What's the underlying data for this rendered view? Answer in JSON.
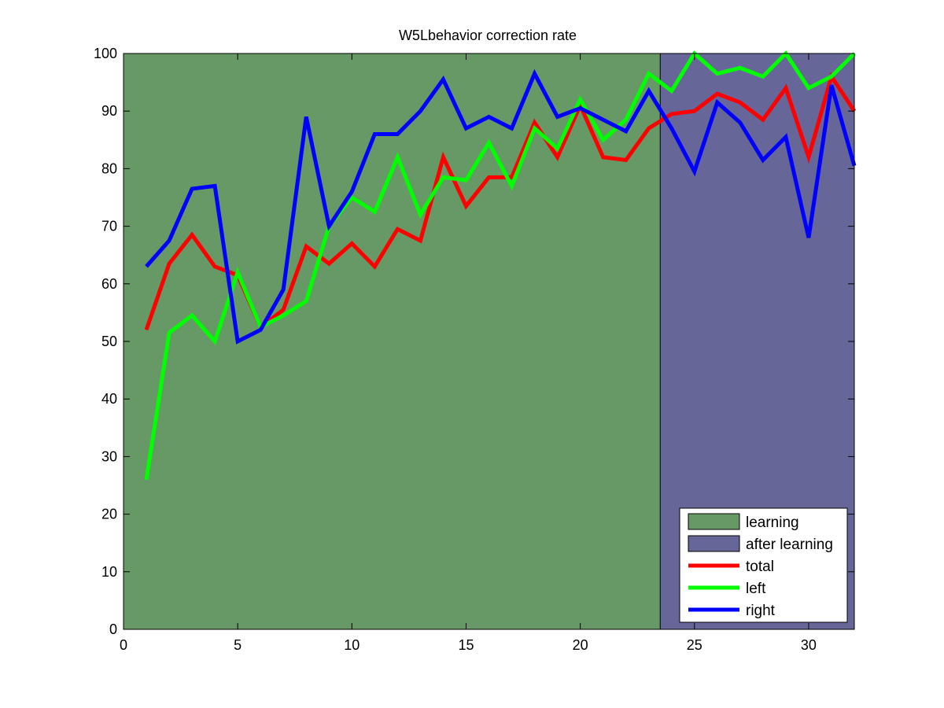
{
  "chart_data": {
    "type": "line",
    "title": "W5Lbehavior correction rate",
    "xlabel": "",
    "ylabel": "",
    "xlim": [
      0,
      32
    ],
    "ylim": [
      0,
      100
    ],
    "grid": false,
    "legend_position": "bottom-right",
    "x_ticks": [
      0,
      5,
      10,
      15,
      20,
      25,
      30
    ],
    "y_ticks": [
      0,
      10,
      20,
      30,
      40,
      50,
      60,
      70,
      80,
      90,
      100
    ],
    "regions": [
      {
        "name": "learning",
        "x_start": 0,
        "x_end": 23.5,
        "color": "#669966"
      },
      {
        "name": "after learning",
        "x_start": 23.5,
        "x_end": 32,
        "color": "#666699"
      }
    ],
    "x": [
      1,
      2,
      3,
      4,
      5,
      6,
      7,
      8,
      9,
      10,
      11,
      12,
      13,
      14,
      15,
      16,
      17,
      18,
      19,
      20,
      21,
      22,
      23,
      24,
      25,
      26,
      27,
      28,
      29,
      30,
      31,
      32
    ],
    "series": [
      {
        "name": "total",
        "color": "#ff0000",
        "values": [
          52,
          63.5,
          68.5,
          63,
          61.5,
          52.5,
          55.5,
          66.5,
          63.5,
          67,
          63,
          69.5,
          67.5,
          82,
          73.5,
          78.5,
          78.5,
          88,
          82,
          91,
          82,
          81.5,
          87,
          89.5,
          90,
          93,
          91.5,
          88.5,
          94,
          82,
          96,
          90
        ]
      },
      {
        "name": "left",
        "color": "#00ff00",
        "values": [
          26,
          51.5,
          54.5,
          50,
          62,
          52.5,
          54.5,
          57,
          70,
          75,
          72.5,
          82,
          72,
          78.5,
          78,
          84.5,
          77,
          87,
          83.5,
          92,
          85,
          88.5,
          96.5,
          93.5,
          100,
          96.5,
          97.5,
          96,
          100,
          94,
          96,
          100
        ]
      },
      {
        "name": "right",
        "color": "#0000ff",
        "values": [
          63,
          67.5,
          76.5,
          77,
          50,
          52,
          59,
          89,
          70,
          76,
          86,
          86,
          90,
          95.5,
          87,
          89,
          87,
          96.5,
          89,
          90.5,
          88.5,
          86.5,
          93.5,
          87,
          79.5,
          91.5,
          88,
          81.5,
          85.5,
          68,
          94.5,
          80.5
        ]
      }
    ]
  }
}
